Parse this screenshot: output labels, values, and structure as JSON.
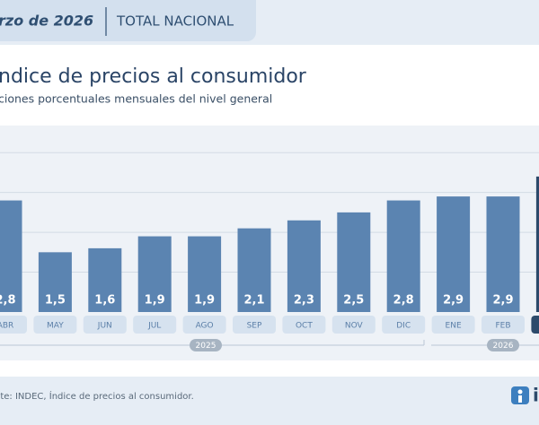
{
  "header": {
    "date": "rzo de 2026",
    "scope": "TOTAL NACIONAL"
  },
  "chart_data": {
    "type": "bar",
    "title": "ndice de precios al consumidor",
    "subtitle": "ciones porcentuales mensuales del nivel general",
    "categories": [
      "ABR",
      "MAY",
      "JUN",
      "JUL",
      "AGO",
      "SEP",
      "OCT",
      "NOV",
      "DIC",
      "ENE",
      "FEB",
      null
    ],
    "values": [
      2.8,
      1.5,
      1.6,
      1.9,
      1.9,
      2.1,
      2.3,
      2.5,
      2.8,
      2.9,
      2.9,
      3.4
    ],
    "value_labels": [
      "2,8",
      "1,5",
      "1,6",
      "1,9",
      "1,9",
      "2,1",
      "2,3",
      "2,5",
      "2,8",
      "2,9",
      "2,9",
      null
    ],
    "colors": [
      "#5b84b1",
      "#5b84b1",
      "#5b84b1",
      "#5b84b1",
      "#5b84b1",
      "#5b84b1",
      "#5b84b1",
      "#5b84b1",
      "#5b84b1",
      "#5b84b1",
      "#5b84b1",
      "#2c4a6b"
    ],
    "x_groups": [
      "2025",
      "2026"
    ],
    "ylim": [
      0,
      4.5
    ],
    "yticks": [
      1,
      2,
      3,
      4
    ],
    "grid": true,
    "source": "nte: INDEC, Índice de precios al consumidor."
  }
}
